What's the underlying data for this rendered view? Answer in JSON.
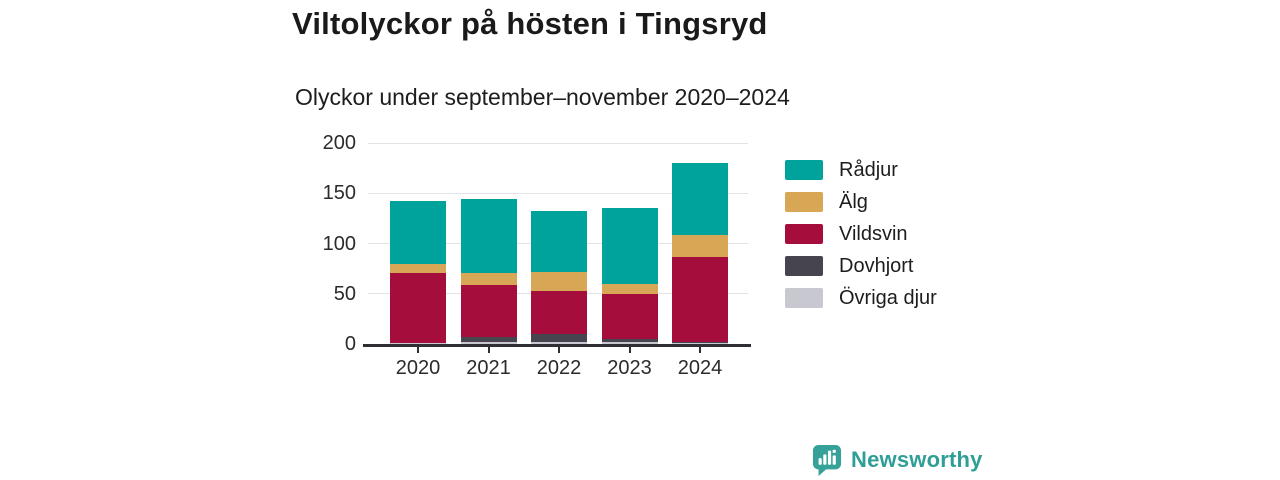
{
  "chart_data": {
    "type": "bar",
    "stacked": true,
    "title": "Viltolyckor på hösten i Tingsryd",
    "subtitle": "Olyckor under september–november 2020–2024",
    "categories": [
      "2020",
      "2021",
      "2022",
      "2023",
      "2024"
    ],
    "series": [
      {
        "name": "Rådjur",
        "color": "#00a39b",
        "values": [
          62,
          73,
          60,
          75,
          72
        ]
      },
      {
        "name": "Älg",
        "color": "#d8a755",
        "values": [
          9,
          12,
          19,
          10,
          21
        ]
      },
      {
        "name": "Vildsvin",
        "color": "#a50d3d",
        "values": [
          70,
          52,
          43,
          45,
          85
        ]
      },
      {
        "name": "Dovhjort",
        "color": "#45444f",
        "values": [
          0,
          5,
          8,
          3,
          1
        ]
      },
      {
        "name": "Övriga djur",
        "color": "#c8c8d1",
        "values": [
          1,
          2,
          2,
          2,
          1
        ]
      }
    ],
    "totals": [
      142,
      144,
      132,
      135,
      180
    ],
    "ylim": [
      0,
      200
    ],
    "yticks": [
      0,
      50,
      100,
      150,
      200
    ],
    "grid": "horizontal",
    "legend_position": "right",
    "colors": {
      "axis": "#2e2e33",
      "gridline": "#e3e3e7",
      "text": "#1d1d1d"
    }
  },
  "footer": {
    "brand": "Newsworthy",
    "brand_color": "#2f9f96"
  }
}
